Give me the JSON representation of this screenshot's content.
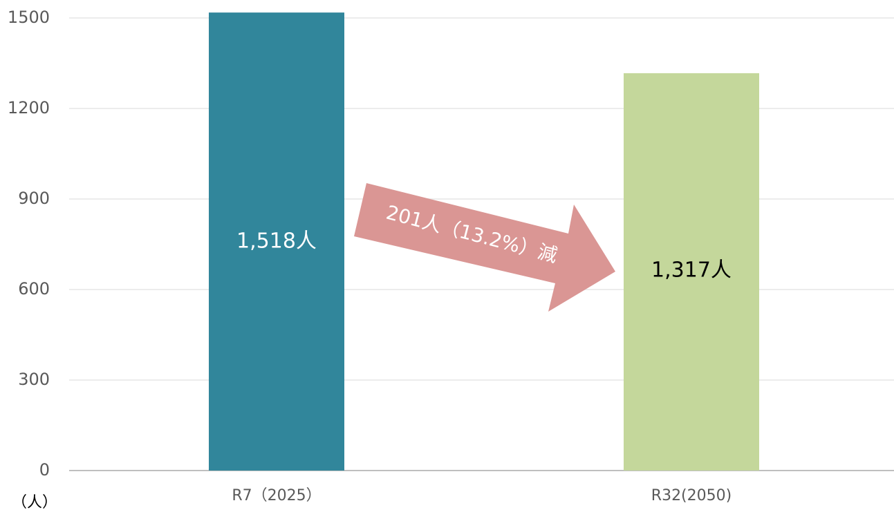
{
  "chart_data": {
    "type": "bar",
    "categories": [
      "R7（2025）",
      "R32(2050)"
    ],
    "values": [
      1518,
      1317
    ],
    "value_labels": [
      "1,518人",
      "1,317人"
    ],
    "colors": [
      "#31869b",
      "#c4d79b"
    ],
    "value_label_colors": [
      "#ffffff",
      "#000000"
    ],
    "ylim": [
      0,
      1500
    ],
    "yticks": [
      0,
      300,
      600,
      900,
      1200,
      1500
    ],
    "y_label": "（人）",
    "annotation": "201人（13.2%）減",
    "grid": true
  }
}
